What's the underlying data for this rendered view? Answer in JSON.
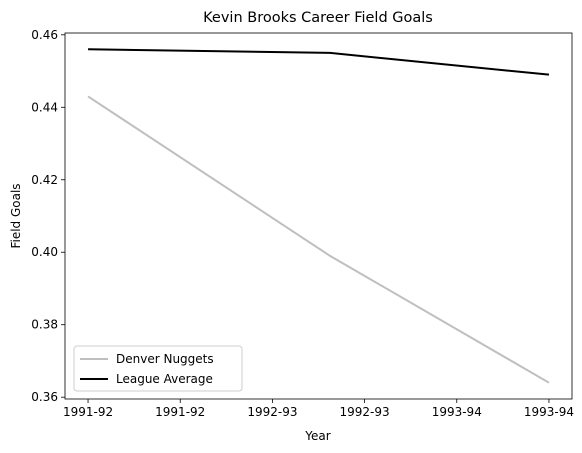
{
  "chart_data": {
    "type": "line",
    "title": "Kevin Brooks  Career Field Goals",
    "xlabel": "Year",
    "ylabel": "Field Goals",
    "x_ticks": [
      "1991-92",
      "1991-92",
      "1992-93",
      "1992-93",
      "1993-94",
      "1993-94"
    ],
    "x": [
      "1991-92",
      "1992-93",
      "1993-94"
    ],
    "x_tick_positions": [
      0,
      0.4,
      0.8,
      1.2,
      1.6,
      2.0
    ],
    "x_point_positions": [
      0,
      1.05,
      2.0
    ],
    "ylim": [
      0.3595,
      0.4605
    ],
    "y_ticks": [
      0.36,
      0.38,
      0.4,
      0.42,
      0.44,
      0.46
    ],
    "y_tick_labels": [
      "0.36",
      "0.38",
      "0.40",
      "0.42",
      "0.44",
      "0.46"
    ],
    "grid": false,
    "legend_position": "lower-left",
    "series": [
      {
        "name": "Denver Nuggets",
        "values": [
          0.443,
          0.399,
          0.364
        ],
        "color": "#bfbfbf"
      },
      {
        "name": "League Average",
        "values": [
          0.456,
          0.455,
          0.449
        ],
        "color": "#000000"
      }
    ]
  }
}
